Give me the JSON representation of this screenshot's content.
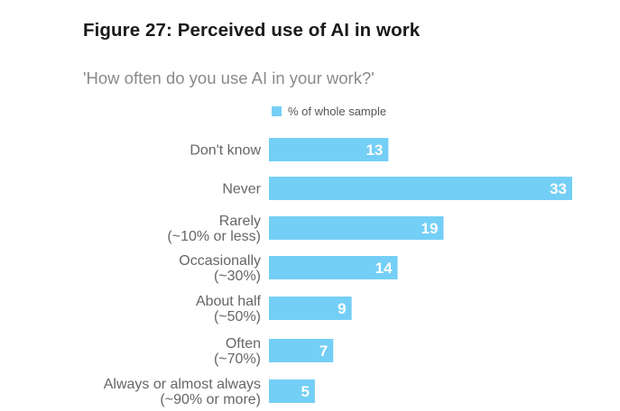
{
  "title": "Figure 27: Perceived use of AI in work",
  "subtitle": "'How often do you use AI in your work?'",
  "colors": {
    "bar": "#74cff6"
  },
  "chart_data": {
    "type": "bar",
    "orientation": "horizontal",
    "categories": [
      [
        "Don't know"
      ],
      [
        "Never"
      ],
      [
        "Rarely",
        "(~10% or less)"
      ],
      [
        "Occasionally",
        "(~30%)"
      ],
      [
        "About half",
        "(~50%)"
      ],
      [
        "Often",
        "(~70%)"
      ],
      [
        "Always or almost always",
        "(~90% or more)"
      ]
    ],
    "series": [
      {
        "name": "% of whole sample",
        "values": [
          13,
          33,
          19,
          14,
          9,
          7,
          5
        ]
      }
    ],
    "xlim": [
      0,
      33
    ],
    "grid": false,
    "legend_position": "top-left"
  }
}
